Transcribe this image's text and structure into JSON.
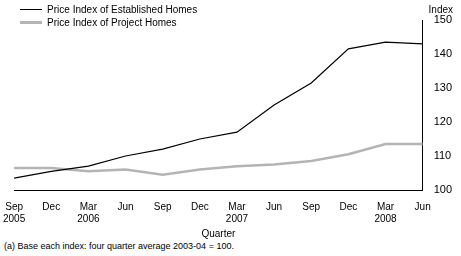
{
  "chart_data": {
    "type": "line",
    "xlabel": "Quarter",
    "ylabel": "Index",
    "footnote": "(a) Base each index: four quarter average 2003-04 = 100.",
    "categories": [
      "Sep 2005",
      "Dec",
      "Mar 2006",
      "Jun",
      "Sep",
      "Dec",
      "Mar 2007",
      "Jun",
      "Sep",
      "Dec",
      "Mar 2008",
      "Jun"
    ],
    "series": [
      {
        "name": "Price Index of Established Homes",
        "color": "#000000",
        "line_style": "solid",
        "values": [
          103.5,
          105.5,
          107,
          110,
          112,
          115,
          117,
          125,
          131.5,
          141.5,
          143.5,
          143
        ]
      },
      {
        "name": "Price Index of Project Homes",
        "color": "#b4b4b4",
        "line_style": "solid",
        "values": [
          106.5,
          106.5,
          105.5,
          106,
          104.5,
          106,
          107,
          107.5,
          108.5,
          110.5,
          113.5,
          113.5
        ]
      }
    ],
    "ylim": [
      100,
      150
    ],
    "yticks": [
      100,
      110,
      120,
      130,
      140,
      150
    ],
    "grid": false,
    "legend": "top-left"
  }
}
